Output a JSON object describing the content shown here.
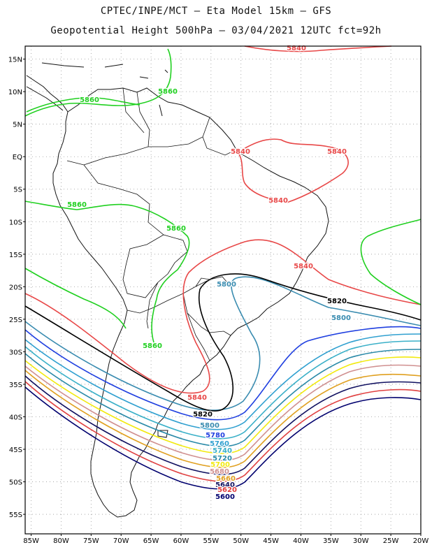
{
  "title": {
    "line1": "CPTEC/INPE/MCT –  Eta Model 15km – GFS",
    "line2": "Geopotential Height 500hPa – 03/04/2021 12UTC fct=92h"
  },
  "axes": {
    "lat_labels": [
      "15N",
      "10N",
      "5N",
      "EQ",
      "5S",
      "10S",
      "15S",
      "20S",
      "25S",
      "30S",
      "35S",
      "40S",
      "45S",
      "50S",
      "55S"
    ],
    "lat_values": [
      15,
      10,
      5,
      0,
      -5,
      -10,
      -15,
      -20,
      -25,
      -30,
      -35,
      -40,
      -45,
      -50,
      -55
    ],
    "lon_labels": [
      "85W",
      "80W",
      "75W",
      "70W",
      "65W",
      "60W",
      "55W",
      "50W",
      "45W",
      "40W",
      "35W",
      "30W",
      "25W",
      "20W"
    ],
    "lon_values": [
      -85,
      -80,
      -75,
      -70,
      -65,
      -60,
      -55,
      -50,
      -45,
      -40,
      -35,
      -30,
      -25,
      -20
    ],
    "lon_range": [
      -86,
      -20
    ],
    "lat_range": [
      -58,
      17
    ],
    "grid": "dotted"
  },
  "colors": {
    "5600": "#00006e",
    "5620": "#e04040",
    "5640": "#101060",
    "5660": "#e0a020",
    "5680": "#d09090",
    "5700": "#f2ea10",
    "5720": "#2a8aa8",
    "5740": "#3ab0c8",
    "5760": "#30a0d0",
    "5780": "#2040e0",
    "5800": "#3a8cb0",
    "5820": "#000000",
    "5840": "#e84848",
    "5860": "#20d020",
    "coast": "#111111"
  },
  "contour_labels": [
    {
      "text": "5840",
      "level": "5840"
    },
    {
      "text": "5860",
      "level": "5860"
    },
    {
      "text": "5860",
      "level": "5860"
    },
    {
      "text": "5840",
      "level": "5840"
    },
    {
      "text": "5840",
      "level": "5840"
    },
    {
      "text": "5840",
      "level": "5840"
    },
    {
      "text": "5860",
      "level": "5860"
    },
    {
      "text": "5860",
      "level": "5860"
    },
    {
      "text": "5840",
      "level": "5840"
    },
    {
      "text": "5800",
      "level": "5800"
    },
    {
      "text": "5820",
      "level": "5820"
    },
    {
      "text": "5800",
      "level": "5800"
    },
    {
      "text": "5860",
      "level": "5860"
    },
    {
      "text": "5840",
      "level": "5840"
    },
    {
      "text": "5820",
      "level": "5820"
    },
    {
      "text": "5800",
      "level": "5800"
    },
    {
      "text": "5780",
      "level": "5780"
    },
    {
      "text": "5760",
      "level": "5760"
    },
    {
      "text": "5740",
      "level": "5740"
    },
    {
      "text": "5720",
      "level": "5720"
    },
    {
      "text": "5700",
      "level": "5700"
    },
    {
      "text": "5680",
      "level": "5680"
    },
    {
      "text": "5660",
      "level": "5660"
    },
    {
      "text": "5640",
      "level": "5640"
    },
    {
      "text": "5620",
      "level": "5620"
    },
    {
      "text": "5600",
      "level": "5600"
    }
  ]
}
